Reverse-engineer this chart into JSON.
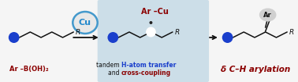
{
  "bg_color": "#f5f5f5",
  "panel_bg": "#ccdee8",
  "blue_dot_color": "#1a3fcc",
  "chain_color": "#111111",
  "arrow_color": "#111111",
  "cu_circle_edge": "#4499cc",
  "cu_text_color": "#2288cc",
  "cu_bg": "#e8e8e8",
  "ar_cu_color": "#8b0000",
  "ar_boh2_color": "#8b0000",
  "hat_color": "#1a3fcc",
  "cc_color": "#8b0000",
  "delta_color": "#8b0000",
  "radical_color": "#222222",
  "ar_text": "Ar",
  "ar_boh2_text": "Ar –B(OH)₂",
  "ar_cu_text": "Ar –Cu",
  "delta_text": "δ C–H arylation",
  "tandem_text": "tandem ",
  "hat_text": "H-atom transfer",
  "and_text": "and ",
  "cc_text": "cross-coupling",
  "R_text": "R",
  "Cu_text": "Cu",
  "fs_main": 7.0,
  "fs_small": 6.0,
  "fs_R": 6.5,
  "fs_cu": 8.0,
  "fs_delta": 7.5
}
